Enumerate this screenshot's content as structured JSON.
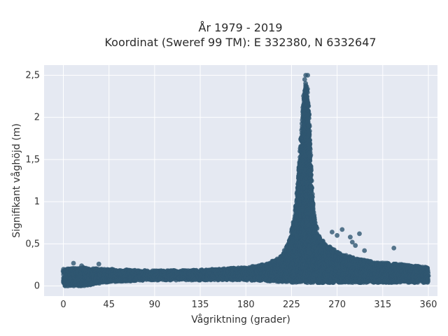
{
  "chart_data": {
    "type": "scatter",
    "title_lines": [
      "År 1979 - 2019",
      "Koordinat (Sweref 99 TM): E 332380, N 6332647"
    ],
    "xlabel": "Vågriktning (grader)",
    "ylabel": "Signifikant våghöjd (m)",
    "xlim": [
      -19,
      369
    ],
    "ylim": [
      -0.12,
      2.62
    ],
    "x_ticks": [
      0,
      45,
      90,
      135,
      180,
      225,
      270,
      315,
      360
    ],
    "x_tick_labels": [
      "0",
      "45",
      "90",
      "135",
      "180",
      "225",
      "270",
      "315",
      "360"
    ],
    "y_ticks": [
      0,
      0.5,
      1,
      1.5,
      2,
      2.5
    ],
    "y_tick_labels": [
      "0",
      "0,5",
      "1",
      "1,5",
      "2",
      "2,5"
    ],
    "grid": true,
    "legend": "none",
    "marker_color": "#2f5670",
    "plot_background": "#e5e9f2",
    "envelope": {
      "x": [
        0,
        20,
        45,
        90,
        135,
        180,
        200,
        215,
        222,
        228,
        232,
        235,
        237,
        239,
        241,
        243,
        245,
        248,
        252,
        258,
        265,
        275,
        290,
        310,
        330,
        360
      ],
      "upper": [
        0.2,
        0.22,
        0.2,
        0.18,
        0.19,
        0.22,
        0.26,
        0.35,
        0.5,
        0.8,
        1.3,
        1.9,
        2.25,
        2.42,
        2.3,
        1.8,
        1.2,
        0.8,
        0.6,
        0.5,
        0.45,
        0.38,
        0.32,
        0.28,
        0.26,
        0.22
      ],
      "lower": [
        0.0,
        0.0,
        0.05,
        0.07,
        0.07,
        0.07,
        0.06,
        0.05,
        0.05,
        0.04,
        0.04,
        0.04,
        0.04,
        0.04,
        0.04,
        0.04,
        0.04,
        0.04,
        0.04,
        0.04,
        0.04,
        0.04,
        0.04,
        0.04,
        0.04,
        0.04
      ]
    },
    "outliers": [
      {
        "x": 239,
        "y": 2.5
      },
      {
        "x": 241,
        "y": 2.5
      },
      {
        "x": 238,
        "y": 2.45
      },
      {
        "x": 240,
        "y": 2.2
      },
      {
        "x": 237,
        "y": 2.05
      },
      {
        "x": 275,
        "y": 0.67
      },
      {
        "x": 265,
        "y": 0.64
      },
      {
        "x": 292,
        "y": 0.62
      },
      {
        "x": 283,
        "y": 0.58
      },
      {
        "x": 270,
        "y": 0.6
      },
      {
        "x": 285,
        "y": 0.52
      },
      {
        "x": 288,
        "y": 0.48
      },
      {
        "x": 326,
        "y": 0.45
      },
      {
        "x": 297,
        "y": 0.42
      },
      {
        "x": 10,
        "y": 0.27
      },
      {
        "x": 18,
        "y": 0.24
      },
      {
        "x": 35,
        "y": 0.26
      }
    ]
  }
}
